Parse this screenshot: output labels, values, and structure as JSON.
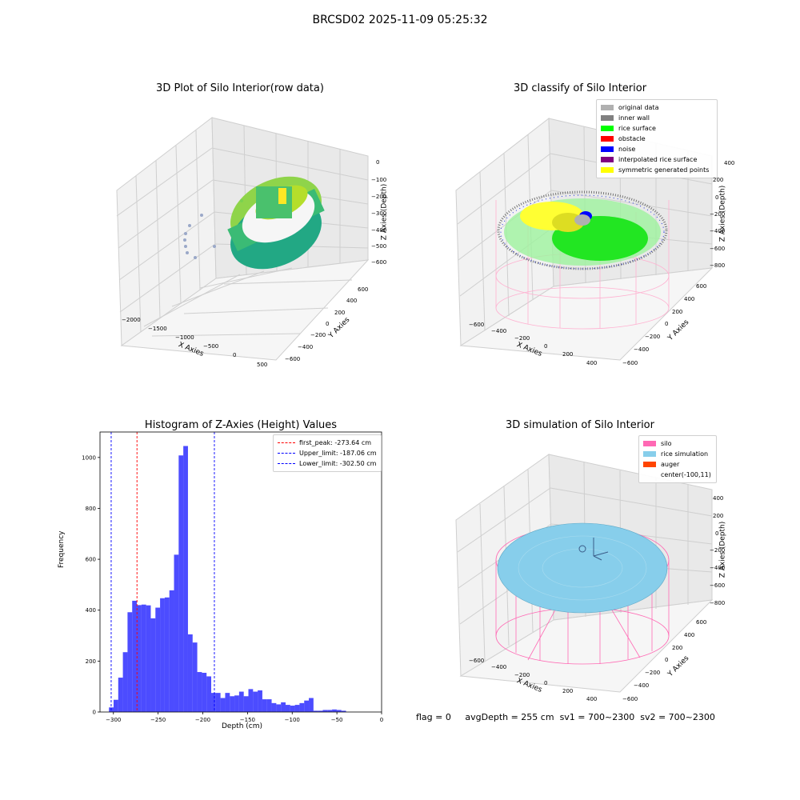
{
  "suptitle": "BRCSD02 2025-11-09 05:25:32",
  "panel_raw": {
    "title": "3D Plot of Silo Interior(row data)",
    "xlabel": "X Axies",
    "ylabel": "Y Axies",
    "zlabel": "Z Axies (Depth)",
    "xticks": [
      "−2000",
      "−1500",
      "−1000",
      "−500",
      "0",
      "500"
    ],
    "yticks": [
      "−600",
      "−400",
      "−200",
      "0",
      "200",
      "400",
      "600"
    ],
    "zticks": [
      "0",
      "−100",
      "−200",
      "−300",
      "−400",
      "−500",
      "−600"
    ]
  },
  "panel_classify": {
    "title": "3D classify of Silo Interior",
    "xlabel": "X Axies",
    "ylabel": "Y Axies",
    "zlabel": "Z Axies (Depth)",
    "xticks": [
      "−600",
      "−400",
      "−200",
      "0",
      "200",
      "400"
    ],
    "yticks": [
      "−600",
      "−400",
      "−200",
      "0",
      "200",
      "400",
      "600"
    ],
    "zticks": [
      "200",
      "0",
      "−200",
      "−400",
      "−600",
      "−800"
    ],
    "zticks_top": "400",
    "legend": [
      {
        "label": "original data",
        "color": "#b0b0b0"
      },
      {
        "label": "inner wall",
        "color": "#808080"
      },
      {
        "label": "rice surface",
        "color": "#00ff00"
      },
      {
        "label": "obstacle",
        "color": "#ff0000"
      },
      {
        "label": "noise",
        "color": "#0000ff"
      },
      {
        "label": "interpolated rice surface",
        "color": "#800080"
      },
      {
        "label": "symmetric generated points",
        "color": "#ffff00"
      }
    ]
  },
  "panel_hist": {
    "title": "Histogram of Z-Axies (Height) Values",
    "xlabel": "Depth (cm)",
    "ylabel": "Frequency",
    "legend": [
      {
        "label": "first_peak: -273.64 cm",
        "color": "#ff0000"
      },
      {
        "label": "Upper_limit: -187.06 cm",
        "color": "#0000ff"
      },
      {
        "label": "Lower_limit: -302.50 cm",
        "color": "#0000ff"
      }
    ]
  },
  "panel_sim": {
    "title": "3D simulation of Silo Interior",
    "xlabel": "X Axies",
    "ylabel": "Y Axies",
    "zlabel": "Z Axies (Depth)",
    "xticks": [
      "−600",
      "−400",
      "−200",
      "0",
      "200",
      "400"
    ],
    "yticks": [
      "−600",
      "−400",
      "−200",
      "0",
      "200",
      "400",
      "600"
    ],
    "zticks": [
      "400",
      "200",
      "0",
      "−200",
      "−400",
      "−600",
      "−800"
    ],
    "legend": [
      {
        "label": "silo",
        "color": "#ff69b4"
      },
      {
        "label": "rice simulation",
        "color": "#87ceeb"
      },
      {
        "label": "auger",
        "color": "#ff4500"
      },
      {
        "label": "center(-100,11)",
        "color": "transparent"
      }
    ]
  },
  "footer": {
    "flag": "flag = 0",
    "avg": "avgDepth = 255 cm",
    "sv1": "sv1 = 700~2300",
    "sv2": "sv2 = 700~2300"
  },
  "chart_data": [
    {
      "type": "scatter",
      "dimension": "3d",
      "title": "3D Plot of Silo Interior(row data)",
      "xlabel": "X Axies",
      "ylabel": "Y Axies",
      "zlabel": "Z Axies (Depth)",
      "xlim": [
        -2200,
        600
      ],
      "ylim": [
        -600,
        600
      ],
      "zlim": [
        -650,
        0
      ],
      "colormap": "viridis",
      "note_points": "ring of points around x~-100, z between -200 and -600, plus a few outliers near x~-1500"
    },
    {
      "type": "scatter",
      "dimension": "3d",
      "title": "3D classify of Silo Interior",
      "xlim": [
        -650,
        450
      ],
      "ylim": [
        -600,
        600
      ],
      "zlim": [
        -900,
        400
      ],
      "series": [
        {
          "name": "original data"
        },
        {
          "name": "inner wall"
        },
        {
          "name": "rice surface"
        },
        {
          "name": "obstacle"
        },
        {
          "name": "noise"
        },
        {
          "name": "interpolated rice surface"
        },
        {
          "name": "symmetric generated points"
        }
      ]
    },
    {
      "type": "bar",
      "title": "Histogram of Z-Axies (Height) Values",
      "xlabel": "Depth (cm)",
      "ylabel": "Frequency",
      "xlim": [
        -315,
        0
      ],
      "ylim": [
        0,
        1100
      ],
      "xticks": [
        -300,
        -250,
        -200,
        -150,
        -100,
        -50,
        0
      ],
      "yticks": [
        0,
        200,
        400,
        600,
        800,
        1000
      ],
      "bin_start": -305,
      "bin_width": 5.2,
      "values": [
        18,
        48,
        135,
        235,
        392,
        437,
        420,
        422,
        419,
        368,
        410,
        447,
        450,
        478,
        618,
        1008,
        1045,
        305,
        273,
        157,
        154,
        140,
        75,
        75,
        55,
        75,
        62,
        65,
        80,
        62,
        90,
        80,
        85,
        50,
        50,
        35,
        30,
        38,
        28,
        25,
        28,
        35,
        45,
        55,
        5,
        5,
        8,
        8,
        10,
        8,
        5
      ],
      "vlines": [
        {
          "label": "first_peak: -273.64 cm",
          "x": -273.64,
          "color": "#ff0000"
        },
        {
          "label": "Upper_limit: -187.06 cm",
          "x": -187.06,
          "color": "#0000ff"
        },
        {
          "label": "Lower_limit: -302.50 cm",
          "x": -302.5,
          "color": "#0000ff"
        }
      ],
      "bar_color": "#0000ff"
    },
    {
      "type": "scatter",
      "dimension": "3d",
      "title": "3D simulation of Silo Interior",
      "xlim": [
        -650,
        450
      ],
      "ylim": [
        -600,
        600
      ],
      "zlim": [
        -900,
        400
      ],
      "series": [
        {
          "name": "silo"
        },
        {
          "name": "rice simulation"
        },
        {
          "name": "auger"
        },
        {
          "name": "center(-100,11)"
        }
      ]
    }
  ]
}
